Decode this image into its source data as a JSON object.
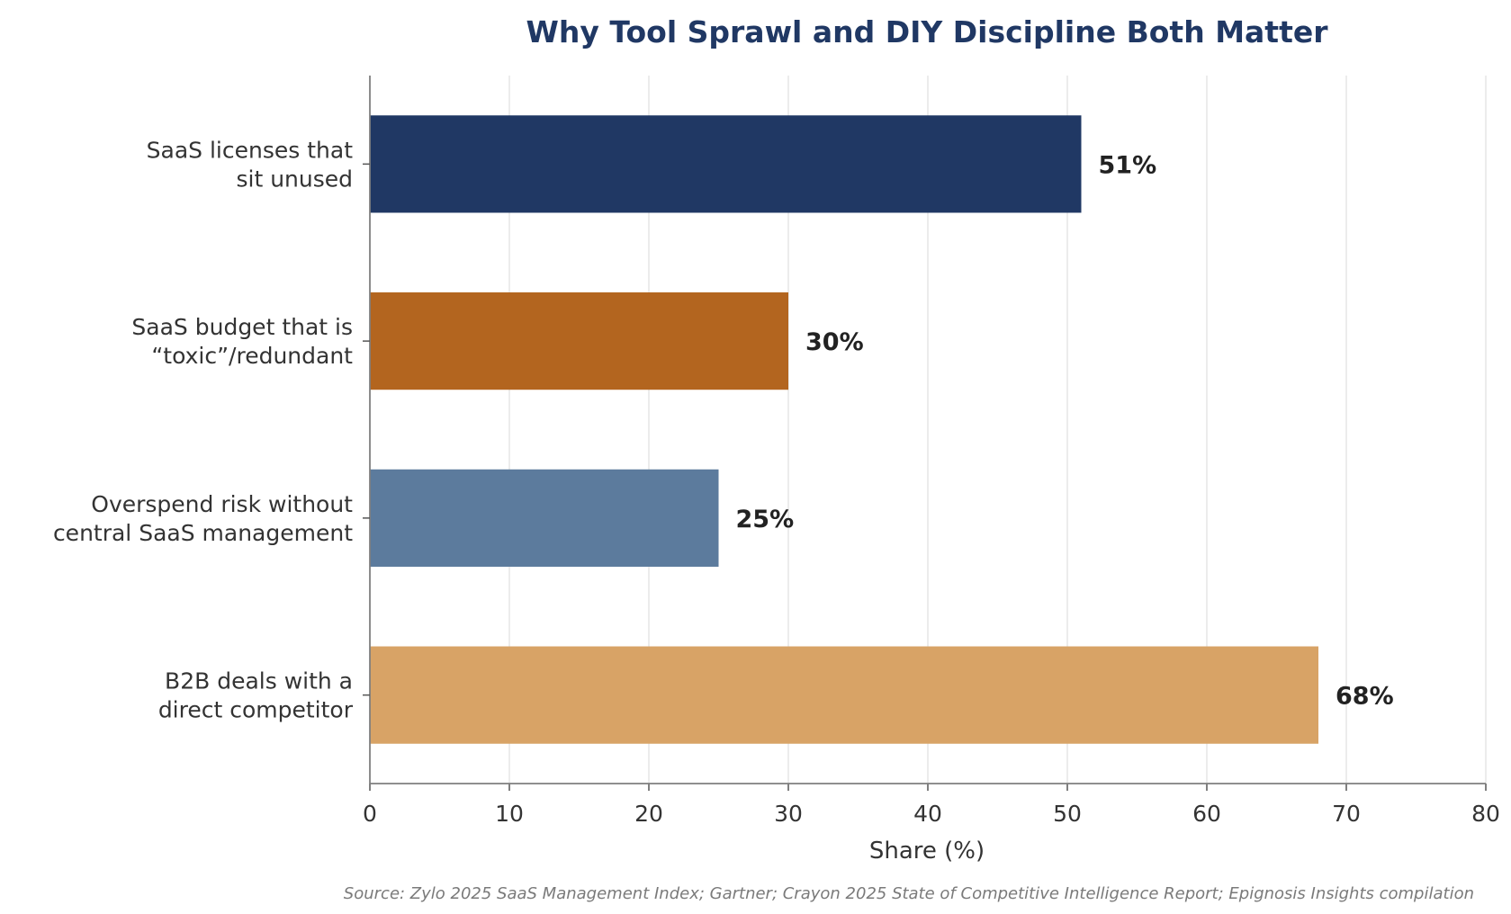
{
  "chart_data": {
    "type": "bar",
    "orientation": "horizontal",
    "title": "Why Tool Sprawl and DIY Discipline Both Matter",
    "xlabel": "Share (%)",
    "ylabel": "",
    "xlim": [
      0,
      80
    ],
    "x_ticks": [
      0,
      10,
      20,
      30,
      40,
      50,
      60,
      70,
      80
    ],
    "grid": "vertical",
    "categories": [
      [
        "SaaS licenses that",
        "sit unused"
      ],
      [
        "SaaS budget that is",
        "“toxic”/redundant"
      ],
      [
        "Overspend risk without",
        "central SaaS management"
      ],
      [
        "B2B deals with a",
        "direct competitor"
      ]
    ],
    "values": [
      51,
      30,
      25,
      68
    ],
    "value_labels": [
      "51%",
      "30%",
      "25%",
      "68%"
    ],
    "bar_colors": [
      "#203864",
      "#b3651f",
      "#5c7b9d",
      "#d8a366"
    ],
    "title_color": "#203864",
    "source": "Source: Zylo 2025 SaaS Management Index; Gartner; Crayon 2025 State of Competitive Intelligence Report; Epignosis Insights compilation"
  }
}
